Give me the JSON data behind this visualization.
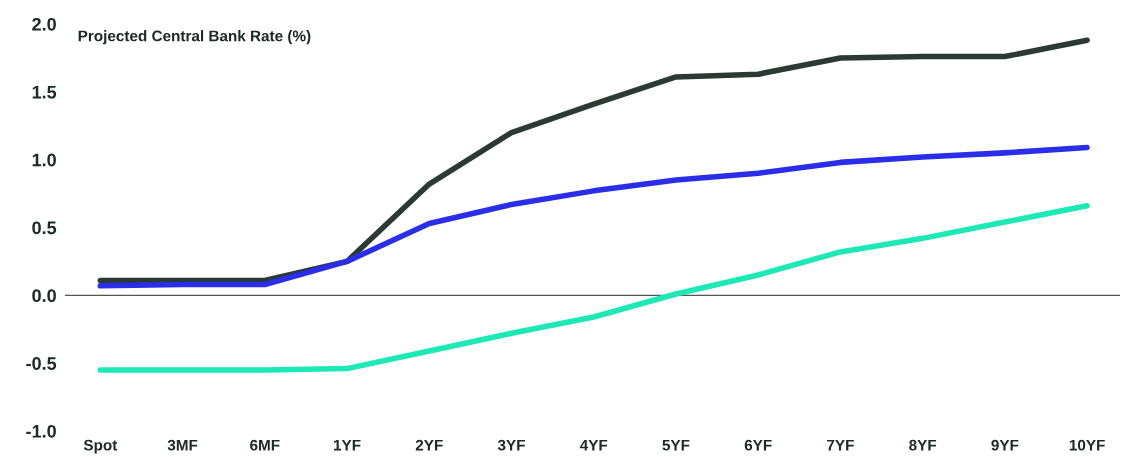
{
  "chart_data": {
    "type": "line",
    "title": "Projected Central Bank Rate (%)",
    "categories": [
      "Spot",
      "3MF",
      "6MF",
      "1YF",
      "2YF",
      "3YF",
      "4YF",
      "5YF",
      "6YF",
      "7YF",
      "8YF",
      "9YF",
      "10YF"
    ],
    "series": [
      {
        "color": "#2b3a33",
        "values": [
          0.11,
          0.11,
          0.11,
          0.25,
          0.82,
          1.2,
          1.41,
          1.61,
          1.63,
          1.75,
          1.76,
          1.76,
          1.88
        ]
      },
      {
        "color": "#2a2ee8",
        "values": [
          0.07,
          0.08,
          0.08,
          0.25,
          0.53,
          0.67,
          0.77,
          0.85,
          0.9,
          0.98,
          1.02,
          1.05,
          1.09
        ]
      },
      {
        "color": "#1de9b6",
        "values": [
          -0.55,
          -0.55,
          -0.55,
          -0.54,
          -0.41,
          -0.28,
          -0.16,
          0.01,
          0.15,
          0.32,
          0.42,
          0.54,
          0.66
        ]
      }
    ],
    "ylim": [
      -1.0,
      2.0
    ],
    "yticks": [
      {
        "value": -1.0,
        "label": "-1.0"
      },
      {
        "value": -0.5,
        "label": "-0.5"
      },
      {
        "value": 0.0,
        "label": "0.0"
      },
      {
        "value": 0.5,
        "label": "0.5"
      },
      {
        "value": 1.0,
        "label": "1.0"
      },
      {
        "value": 1.5,
        "label": "1.5"
      },
      {
        "value": 2.0,
        "label": "2.0"
      }
    ],
    "ref_lines": [
      {
        "axis": "y",
        "value": 0,
        "color": "#555555"
      }
    ],
    "grid": false,
    "legend": false,
    "marker": "none",
    "line_style": "solid"
  }
}
